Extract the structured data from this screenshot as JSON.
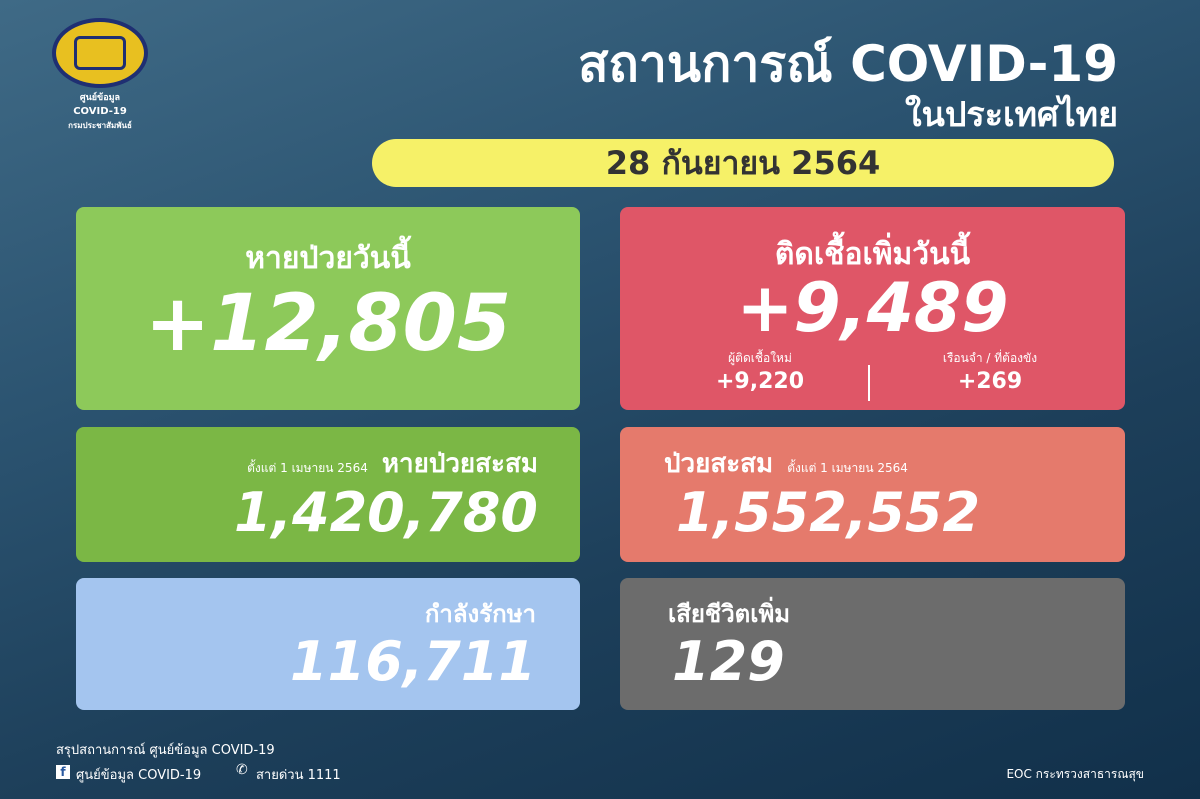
{
  "logo": {
    "line1": "ศูนย์ข้อมูล",
    "line2": "COVID-19",
    "line3": "กรมประชาสัมพันธ์"
  },
  "header": {
    "title": "สถานการณ์ COVID-19",
    "subtitle": "ในประเทศไทย",
    "date": "28 กันยายน 2564"
  },
  "recovered_today": {
    "label": "หายป่วยวันนี้",
    "value": "+12,805"
  },
  "new_cases": {
    "label": "ติดเชื้อเพิ่มวันนี้",
    "value": "+9,489",
    "sub1_label": "ผู้ติดเชื้อใหม่",
    "sub1_value": "+9,220",
    "sub2_label": "เรือนจำ / ที่ต้องขัง",
    "sub2_value": "+269"
  },
  "recovered_total": {
    "since": "ตั้งแต่ 1 เมษายน 2564",
    "label": "หายป่วยสะสม",
    "value": "1,420,780"
  },
  "cases_total": {
    "label": "ป่วยสะสม",
    "since": "ตั้งแต่ 1 เมษายน 2564",
    "value": "1,552,552"
  },
  "in_treatment": {
    "label": "กำลังรักษา",
    "value": "116,711"
  },
  "deaths": {
    "label": "เสียชีวิตเพิ่ม",
    "value": "129"
  },
  "footer": {
    "summary": "สรุปสถานการณ์ ศูนย์ข้อมูล COVID-19",
    "facebook": "ศูนย์ข้อมูล COVID-19",
    "hotline": "สายด่วน 1111",
    "source": "EOC กระทรวงสาธารณสุข"
  },
  "colors": {
    "green": "#8dc95a",
    "red": "#df5667",
    "salmon": "#e57a6c",
    "dark_green": "#7bb745",
    "blue": "#a4c5ef",
    "gray": "#6c6c6c",
    "yellow": "#f6f168"
  }
}
